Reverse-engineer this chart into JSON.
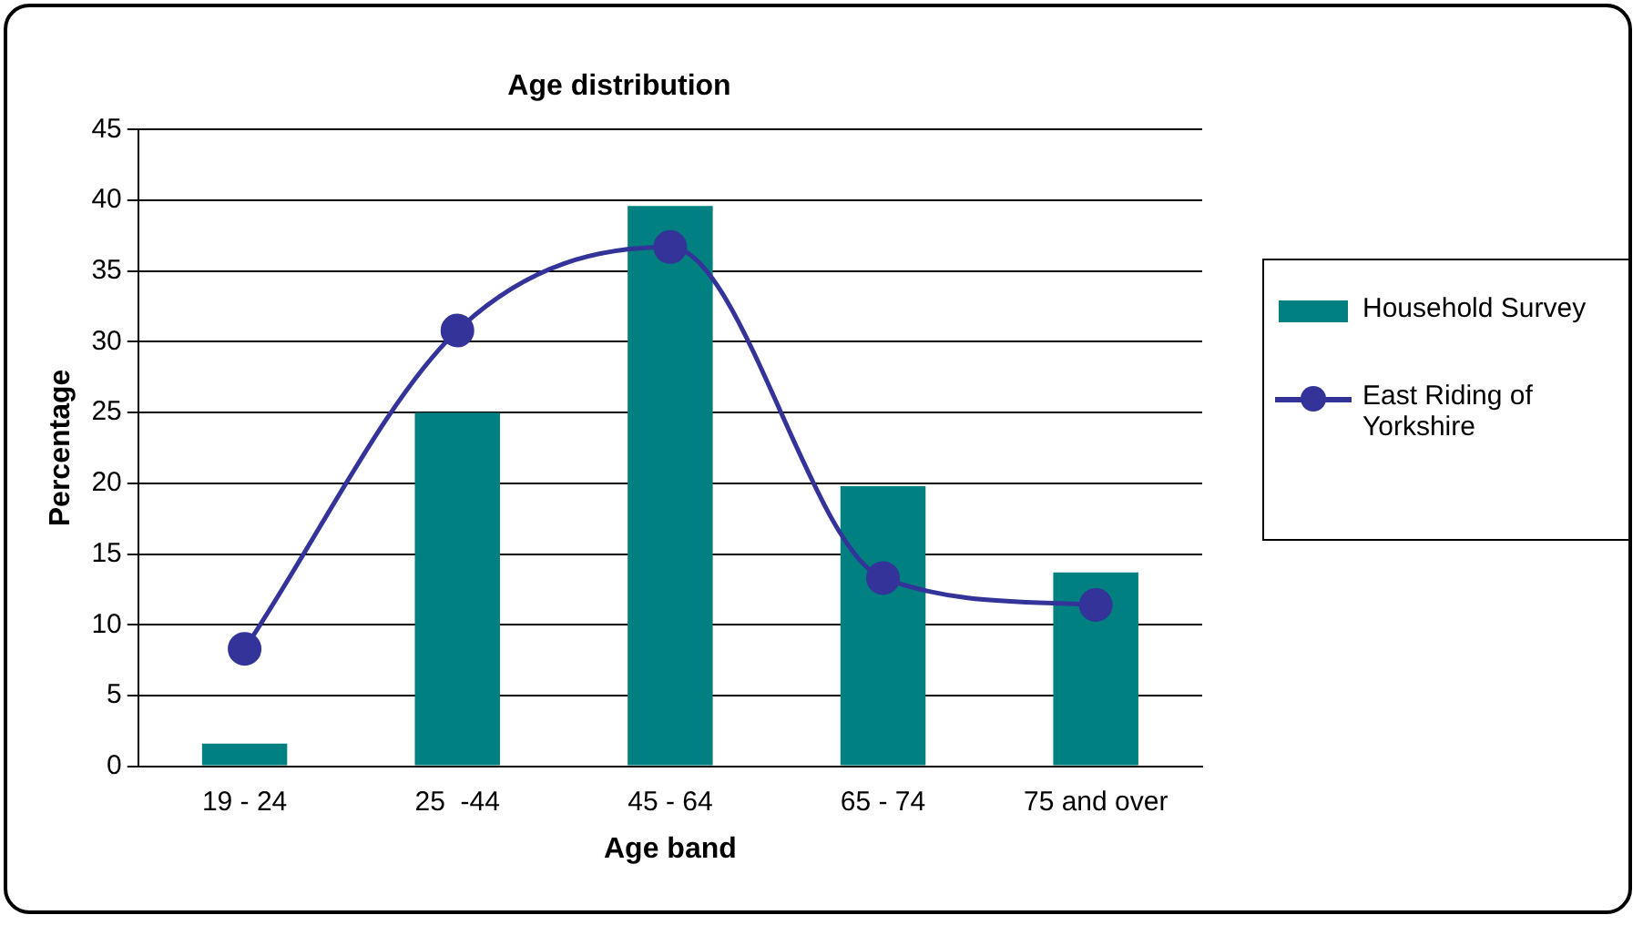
{
  "chart_data": {
    "type": "bar",
    "title": "Age distribution",
    "xlabel": "Age band",
    "ylabel": "Percentage",
    "categories": [
      "19 - 24",
      "25  -44",
      "45 - 64",
      "65 - 74",
      "75 and over"
    ],
    "series": [
      {
        "name": "Household Survey",
        "color": "#008080",
        "values": [
          1.6,
          25,
          39.6,
          19.8,
          13.7
        ]
      },
      {
        "name": "East Riding of Yorkshire",
        "type": "line",
        "color": "#333399",
        "values": [
          8.3,
          30.8,
          36.7,
          13.3,
          11.4
        ]
      }
    ],
    "ylim": [
      0,
      45
    ],
    "yticks": [
      0,
      5,
      10,
      15,
      20,
      25,
      30,
      35,
      40,
      45
    ],
    "grid": "y",
    "legend": "right",
    "marker": "circle"
  }
}
